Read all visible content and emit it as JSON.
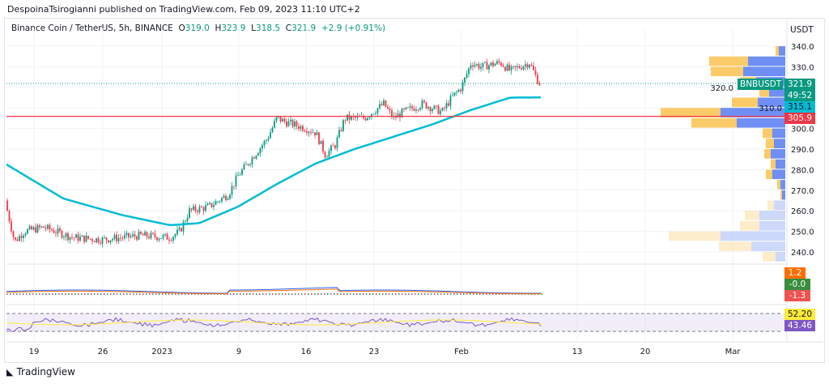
{
  "header": {
    "published": "DespoinaTsirogianni published on TradingView.com, Feb 09, 2023 11:10 UTC+2"
  },
  "legend": {
    "symbol": "Binance Coin / TetherUS, 5h, BINANCE",
    "o_label": "O",
    "o": "319.0",
    "h_label": "H",
    "h": "323.9",
    "l_label": "L",
    "l": "318.5",
    "c_label": "C",
    "c": "321.9",
    "change": "+2.9 (+0.91%)"
  },
  "price_axis": {
    "currency": "USDT",
    "ticks": [
      "340.0",
      "330.0",
      "320.0",
      "310.0",
      "300.0",
      "290.0",
      "280.0",
      "270.0",
      "260.0",
      "250.0",
      "240.0"
    ]
  },
  "tags": {
    "symbol": "BNBUSDT",
    "last": "321.9",
    "countdown": "49:52",
    "ma": "315.1",
    "hline": "305.9",
    "macd1": "1.2",
    "macd2": "-0.0",
    "macd3": "-1.3",
    "rsi_ma": "52.20",
    "rsi": "43.46"
  },
  "time_axis": [
    "19",
    "26",
    "2023",
    "9",
    "16",
    "23",
    "Feb",
    "13",
    "20",
    "Mar"
  ],
  "footer": {
    "brand": "TradingView"
  },
  "colors": {
    "up": "#089981",
    "down": "#f23645",
    "ma": "#00bcd4",
    "hline": "#f23645",
    "vp_up": "#fccb69",
    "vp_down": "#6f8ff4"
  },
  "chart_data": {
    "type": "candlestick",
    "ylim": [
      236,
      346
    ],
    "horizontal_line": 305.9,
    "closes_by_day": [
      [
        "2022-12-16",
        265
      ],
      [
        "2022-12-17",
        245
      ],
      [
        "2022-12-18",
        250
      ],
      [
        "2022-12-20",
        252
      ],
      [
        "2022-12-23",
        247
      ],
      [
        "2022-12-26",
        246
      ],
      [
        "2022-12-30",
        248
      ],
      [
        "2023-01-02",
        247
      ],
      [
        "2023-01-03",
        250
      ],
      [
        "2023-01-04",
        260
      ],
      [
        "2023-01-06",
        262
      ],
      [
        "2023-01-08",
        268
      ],
      [
        "2023-01-09",
        277
      ],
      [
        "2023-01-10",
        283
      ],
      [
        "2023-01-12",
        295
      ],
      [
        "2023-01-13",
        305
      ],
      [
        "2023-01-14",
        303
      ],
      [
        "2023-01-16",
        300
      ],
      [
        "2023-01-17",
        298
      ],
      [
        "2023-01-18",
        287
      ],
      [
        "2023-01-19",
        292
      ],
      [
        "2023-01-20",
        305
      ],
      [
        "2023-01-22",
        305
      ],
      [
        "2023-01-24",
        312
      ],
      [
        "2023-01-25",
        305
      ],
      [
        "2023-01-26",
        308
      ],
      [
        "2023-01-28",
        312
      ],
      [
        "2023-01-30",
        308
      ],
      [
        "2023-01-31",
        315
      ],
      [
        "2023-02-01",
        320
      ],
      [
        "2023-02-02",
        332
      ],
      [
        "2023-02-03",
        330
      ],
      [
        "2023-02-05",
        332
      ],
      [
        "2023-02-06",
        328
      ],
      [
        "2023-02-07",
        330
      ],
      [
        "2023-02-08",
        332
      ],
      [
        "2023-02-09",
        321.9
      ]
    ],
    "moving_average": [
      [
        "2022-12-16",
        283
      ],
      [
        "2022-12-22",
        266
      ],
      [
        "2022-12-28",
        258
      ],
      [
        "2023-01-02",
        253
      ],
      [
        "2023-01-05",
        254
      ],
      [
        "2023-01-09",
        262
      ],
      [
        "2023-01-13",
        273
      ],
      [
        "2023-01-17",
        283
      ],
      [
        "2023-01-21",
        290
      ],
      [
        "2023-01-25",
        296
      ],
      [
        "2023-01-29",
        302
      ],
      [
        "2023-02-02",
        309
      ],
      [
        "2023-02-06",
        315
      ],
      [
        "2023-02-09",
        315.1
      ]
    ],
    "volume_profile": [
      [
        337.5,
        2,
        4
      ],
      [
        332.5,
        24,
        23
      ],
      [
        327.5,
        20,
        26
      ],
      [
        322.5,
        10,
        18
      ],
      [
        317.5,
        6,
        10
      ],
      [
        312.5,
        16,
        17
      ],
      [
        307.5,
        37,
        40
      ],
      [
        302.5,
        28,
        30
      ],
      [
        297.5,
        6,
        8
      ],
      [
        292.5,
        5,
        7
      ],
      [
        287.5,
        4,
        9
      ],
      [
        282.5,
        3,
        6
      ],
      [
        277.5,
        4,
        8
      ],
      [
        272.5,
        2,
        3
      ],
      [
        267.5,
        1,
        2
      ],
      [
        262.5,
        4,
        7
      ],
      [
        257.5,
        9,
        16
      ],
      [
        252.5,
        12,
        16
      ],
      [
        247.5,
        32,
        40
      ],
      [
        242.5,
        20,
        21
      ],
      [
        237.5,
        8,
        6
      ]
    ],
    "rsi_levels": [
      70,
      30
    ]
  }
}
